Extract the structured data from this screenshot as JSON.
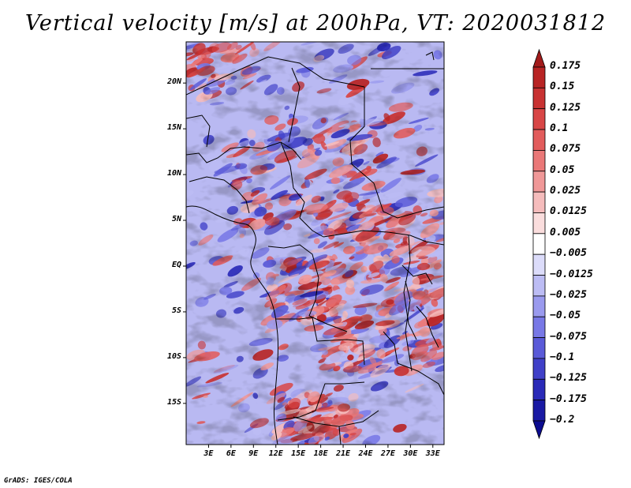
{
  "title": "Vertical velocity [m/s] at 200hPa, VT: 2020031812",
  "footer": "GrADS: IGES/COLA",
  "map": {
    "lat_ticks": [
      "20N",
      "15N",
      "10N",
      "5N",
      "EQ",
      "5S",
      "10S",
      "15S"
    ],
    "lat_values": [
      20,
      15,
      10,
      5,
      0,
      -5,
      -10,
      -15
    ],
    "lon_ticks": [
      "3E",
      "6E",
      "9E",
      "12E",
      "15E",
      "18E",
      "21E",
      "24E",
      "27E",
      "30E",
      "33E"
    ],
    "lon_values": [
      3,
      6,
      9,
      12,
      15,
      18,
      21,
      24,
      27,
      30,
      33
    ],
    "lat_range": [
      -19.5,
      24.5
    ],
    "lon_range": [
      0,
      34.5
    ]
  },
  "colorbar": {
    "labels": [
      "0.175",
      "0.15",
      "0.125",
      "0.1",
      "0.075",
      "0.05",
      "0.025",
      "0.0125",
      "0.005",
      "−0.005",
      "−0.0125",
      "−0.025",
      "−0.05",
      "−0.075",
      "−0.1",
      "−0.125",
      "−0.175",
      "−0.2"
    ],
    "colors": [
      "#a21b1b",
      "#b82424",
      "#c83232",
      "#d84646",
      "#e25c5c",
      "#ea7878",
      "#f09898",
      "#f5bcbc",
      "#fadddd",
      "#ffffff",
      "#dcdcfa",
      "#bcbcf4",
      "#9a9aee",
      "#7878e6",
      "#5a5ad8",
      "#4040c8",
      "#2a2ab8",
      "#1a1aa4",
      "#0c0c90"
    ]
  }
}
